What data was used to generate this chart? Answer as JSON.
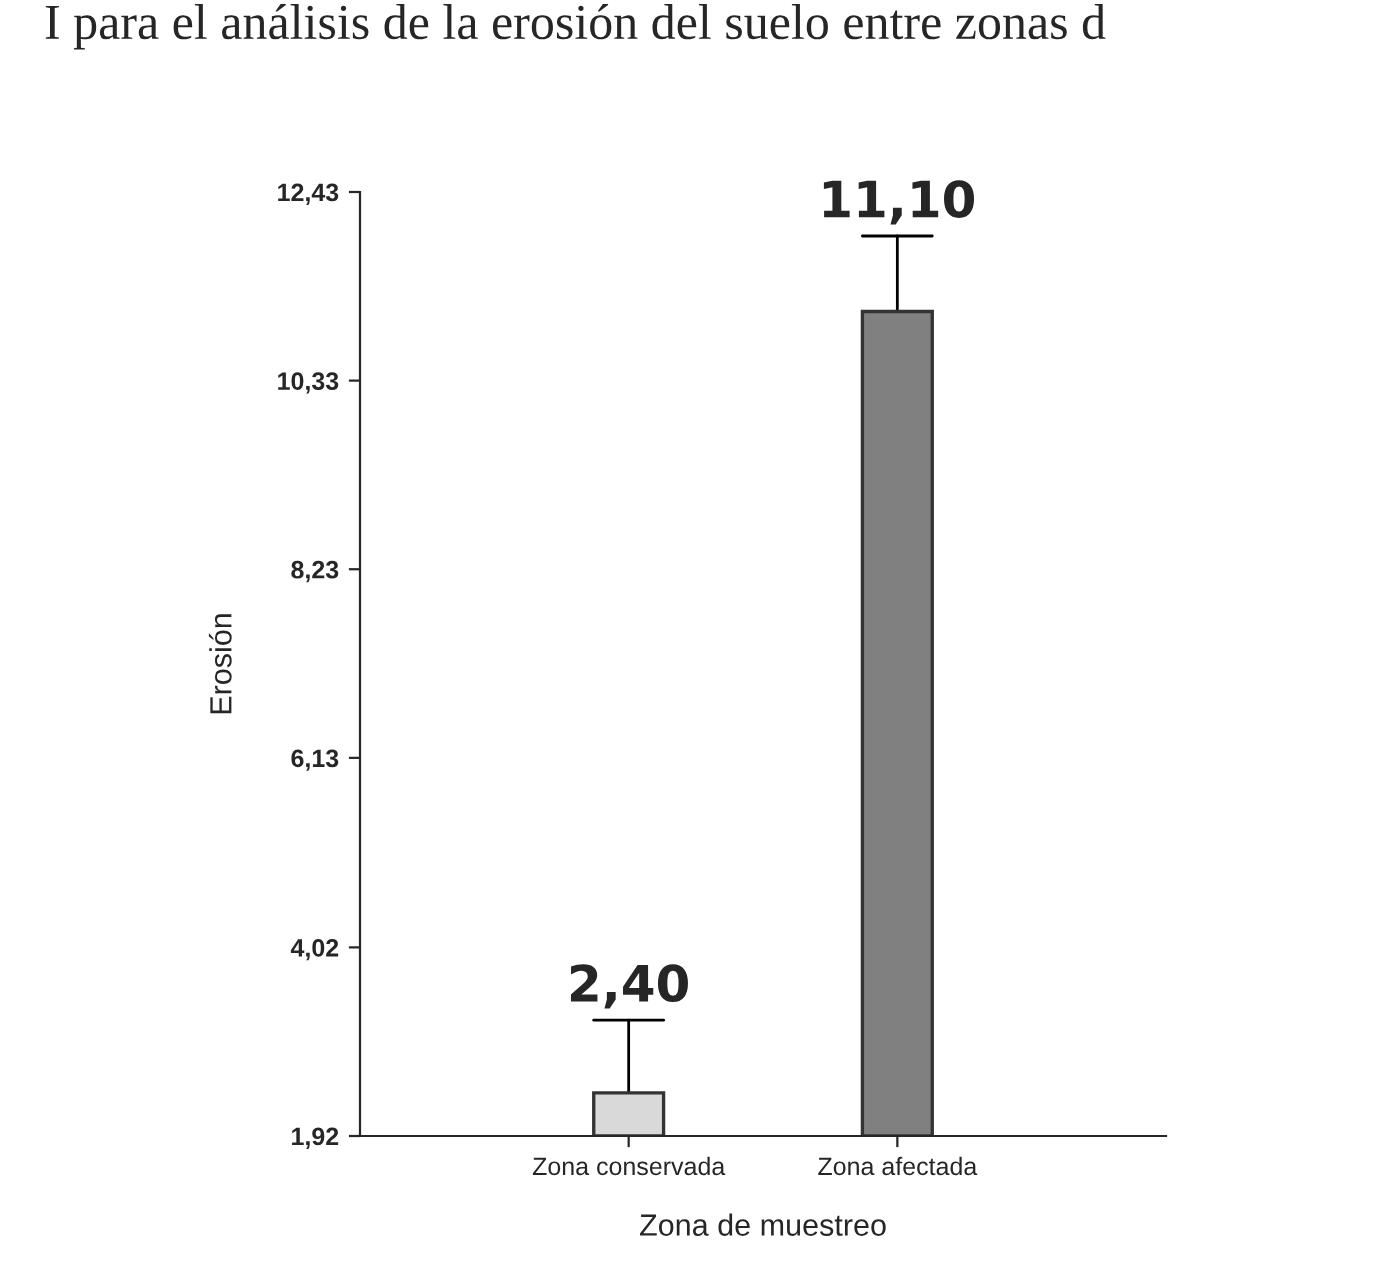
{
  "chart_data": {
    "type": "bar",
    "title": "I para el análisis de la erosión del suelo entre zonas d",
    "xlabel": "Zona de muestreo",
    "ylabel": "Erosión",
    "categories": [
      "Zona conservada",
      "Zona afectada"
    ],
    "values": [
      2.4,
      11.1
    ],
    "colors": [
      "#d9d9d9",
      "#808080"
    ],
    "errors": [
      [
        2.4,
        3.21
      ],
      [
        11.1,
        11.94
      ]
    ],
    "value_labels": [
      "2,40",
      "11,10"
    ],
    "ylim": [
      1.92,
      12.43
    ],
    "yticks": [
      {
        "value": 1.92,
        "label": "1,92"
      },
      {
        "value": 4.02,
        "label": "4,02"
      },
      {
        "value": 6.13,
        "label": "6,13"
      },
      {
        "value": 8.23,
        "label": "8,23"
      },
      {
        "value": 10.33,
        "label": "10,33"
      },
      {
        "value": 12.43,
        "label": "12,43"
      }
    ],
    "grid": false,
    "legend": false
  }
}
